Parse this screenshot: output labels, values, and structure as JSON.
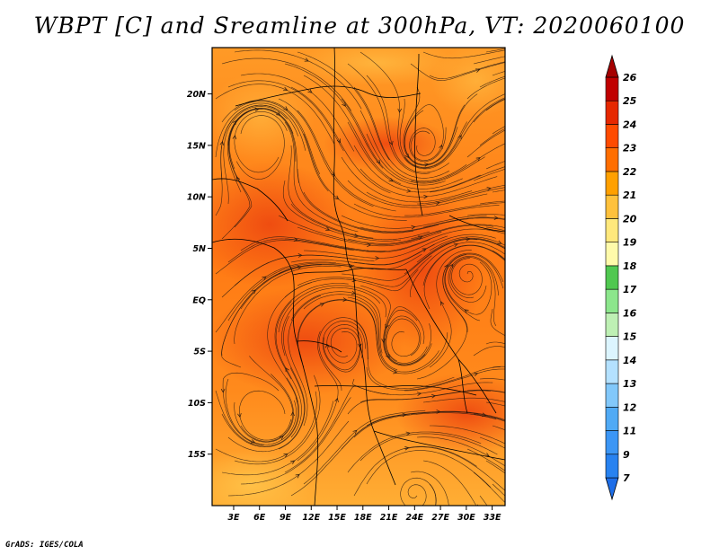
{
  "title": "WBPT [C] and Sreamline at 300hPa, VT: 2020060100",
  "footer": "GrADS: IGES/COLA",
  "map": {
    "lon_labels": [
      "3E",
      "6E",
      "9E",
      "12E",
      "15E",
      "18E",
      "21E",
      "24E",
      "27E",
      "30E",
      "33E"
    ],
    "lon_values": [
      3,
      6,
      9,
      12,
      15,
      18,
      21,
      24,
      27,
      30,
      33
    ],
    "lat_labels": [
      "20N",
      "15N",
      "10N",
      "5N",
      "EQ",
      "5S",
      "10S",
      "15S"
    ],
    "lat_values": [
      20,
      15,
      10,
      5,
      0,
      -5,
      -10,
      -15
    ],
    "lon_range": [
      0.5,
      34.5
    ],
    "lat_range": [
      -20,
      24.5
    ]
  },
  "colorbar": {
    "labels": [
      "7",
      "9",
      "11",
      "12",
      "13",
      "14",
      "15",
      "16",
      "17",
      "18",
      "19",
      "20",
      "21",
      "22",
      "23",
      "24",
      "25",
      "26"
    ],
    "colors": [
      "#1e6ee8",
      "#2882f0",
      "#3c96f5",
      "#50aaf5",
      "#82c8fa",
      "#b4e1ff",
      "#dcf5ff",
      "#bef0b4",
      "#8ce68c",
      "#50c850",
      "#fffaaa",
      "#ffe87c",
      "#ffc13c",
      "#ffa000",
      "#ff6e00",
      "#ff4b00",
      "#e62800",
      "#c00000",
      "#a50000"
    ]
  },
  "colors": {
    "field_low": "#ffb432",
    "field_mid": "#ff8c1e",
    "field_high": "#f25a14",
    "streamline": "#2a1a10",
    "border": "#000000"
  }
}
